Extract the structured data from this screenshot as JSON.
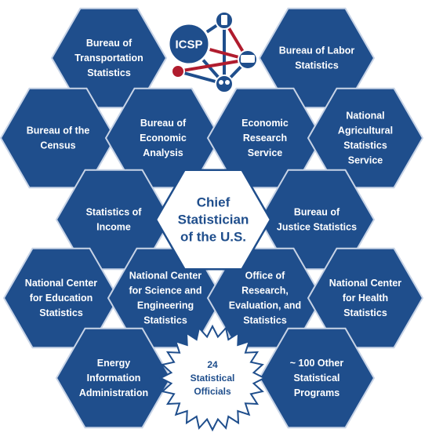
{
  "colors": {
    "hex_fill": "#1f4e8c",
    "hex_stroke": "#c7d3e6",
    "center_fill": "#ffffff",
    "center_text": "#1f4e8c",
    "logo_red": "#b01c2e",
    "logo_blue": "#1f4e8c"
  },
  "logo": {
    "text": "ICSP"
  },
  "center": {
    "lines": [
      "Chief",
      "Statistician",
      "of the U.S."
    ]
  },
  "star": {
    "lines": [
      "24",
      "Statistical",
      "Officials"
    ]
  },
  "agencies": [
    {
      "id": "bts",
      "lines": [
        "Bureau of",
        "Transportation",
        "Statistics"
      ]
    },
    {
      "id": "bls",
      "lines": [
        "Bureau of Labor",
        "Statistics"
      ]
    },
    {
      "id": "census",
      "lines": [
        "Bureau of the",
        "Census"
      ]
    },
    {
      "id": "bea",
      "lines": [
        "Bureau of",
        "Economic",
        "Analysis"
      ]
    },
    {
      "id": "ers",
      "lines": [
        "Economic",
        "Research",
        "Service"
      ]
    },
    {
      "id": "nass",
      "lines": [
        "National",
        "Agricultural",
        "Statistics",
        "Service"
      ]
    },
    {
      "id": "soi",
      "lines": [
        "Statistics of",
        "Income"
      ]
    },
    {
      "id": "bjs",
      "lines": [
        "Bureau of",
        "Justice Statistics"
      ]
    },
    {
      "id": "nces",
      "lines": [
        "National Center",
        "for Education",
        "Statistics"
      ]
    },
    {
      "id": "ncses",
      "lines": [
        "National Center",
        "for Science and",
        "Engineering",
        "Statistics"
      ]
    },
    {
      "id": "opre",
      "lines": [
        "Office of",
        "Research,",
        "Evaluation, and",
        "Statistics"
      ]
    },
    {
      "id": "nchs",
      "lines": [
        "National Center",
        "for Health",
        "Statistics"
      ]
    },
    {
      "id": "eia",
      "lines": [
        "Energy",
        "Information",
        "Administration"
      ]
    },
    {
      "id": "other",
      "lines": [
        "~ 100 Other",
        "Statistical",
        "Programs"
      ]
    }
  ]
}
